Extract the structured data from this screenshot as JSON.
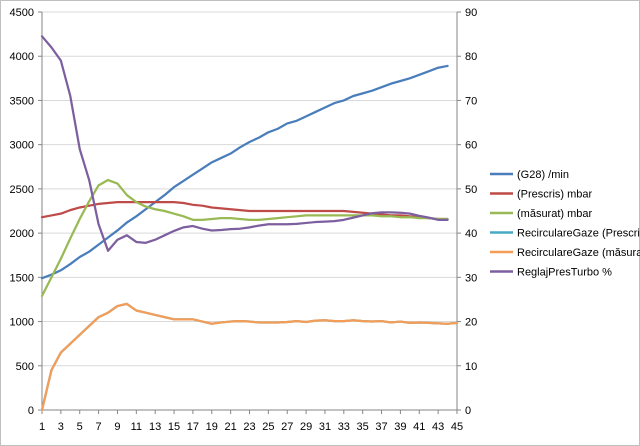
{
  "chart_data": {
    "type": "line",
    "x": [
      1,
      2,
      3,
      4,
      5,
      6,
      7,
      8,
      9,
      10,
      11,
      12,
      13,
      14,
      15,
      16,
      17,
      18,
      19,
      20,
      21,
      22,
      23,
      24,
      25,
      26,
      27,
      28,
      29,
      30,
      31,
      32,
      33,
      34,
      35,
      36,
      37,
      38,
      39,
      40,
      41,
      42,
      43,
      44,
      45
    ],
    "x_ticks": [
      "1",
      "3",
      "5",
      "7",
      "9",
      "11",
      "13",
      "15",
      "17",
      "19",
      "21",
      "23",
      "25",
      "27",
      "29",
      "31",
      "33",
      "35",
      "37",
      "39",
      "41",
      "43",
      "45"
    ],
    "y_left": {
      "min": 0,
      "max": 4500,
      "step": 500,
      "ticks": [
        "0",
        "500",
        "1000",
        "1500",
        "2000",
        "2500",
        "3000",
        "3500",
        "4000",
        "4500"
      ]
    },
    "y_right": {
      "min": 0,
      "max": 90,
      "step": 10,
      "ticks": [
        "0",
        "10",
        "20",
        "30",
        "40",
        "50",
        "60",
        "70",
        "80",
        "90"
      ]
    },
    "grid": "horizontal",
    "legend_position": "right",
    "series": [
      {
        "name": "(G28)  /min",
        "axis": "left",
        "color": "#4a7ebb",
        "values": [
          1490,
          1530,
          1580,
          1650,
          1730,
          1790,
          1870,
          1950,
          2030,
          2120,
          2190,
          2270,
          2350,
          2430,
          2520,
          2590,
          2660,
          2730,
          2800,
          2850,
          2900,
          2970,
          3030,
          3080,
          3140,
          3180,
          3240,
          3270,
          3320,
          3370,
          3420,
          3470,
          3500,
          3550,
          3580,
          3610,
          3650,
          3690,
          3720,
          3750,
          3790,
          3830,
          3870,
          3890,
          null
        ]
      },
      {
        "name": "(Prescris)  mbar",
        "axis": "left",
        "color": "#be4b48",
        "values": [
          2180,
          2200,
          2220,
          2260,
          2290,
          2310,
          2330,
          2340,
          2350,
          2350,
          2350,
          2350,
          2350,
          2350,
          2350,
          2340,
          2320,
          2310,
          2290,
          2280,
          2270,
          2260,
          2250,
          2250,
          2250,
          2250,
          2250,
          2250,
          2250,
          2250,
          2250,
          2250,
          2250,
          2240,
          2230,
          2220,
          2210,
          2200,
          2200,
          2190,
          2180,
          2170,
          2160,
          2160,
          null
        ]
      },
      {
        "name": "(măsurat)  mbar",
        "axis": "left",
        "color": "#98b954",
        "values": [
          1290,
          1500,
          1710,
          1940,
          2160,
          2360,
          2540,
          2600,
          2560,
          2430,
          2350,
          2300,
          2270,
          2250,
          2220,
          2190,
          2150,
          2150,
          2160,
          2170,
          2170,
          2160,
          2150,
          2150,
          2160,
          2170,
          2180,
          2190,
          2200,
          2200,
          2200,
          2200,
          2200,
          2200,
          2200,
          2200,
          2190,
          2190,
          2180,
          2180,
          2170,
          2170,
          2160,
          2160,
          null
        ]
      },
      {
        "name": "RecirculareGaze (Prescris)",
        "axis": "right",
        "color": "#46aac5",
        "values": [
          0,
          9,
          13,
          15,
          17,
          19,
          21,
          22,
          23.5,
          24,
          22.5,
          22,
          21.5,
          21,
          20.5,
          20.5,
          20.5,
          20,
          19.5,
          19.8,
          20,
          20.1,
          20,
          19.8,
          19.8,
          19.8,
          19.9,
          20.1,
          19.9,
          20.2,
          20.3,
          20.1,
          20.1,
          20.3,
          20.1,
          20,
          20.1,
          19.8,
          20,
          19.7,
          19.8,
          19.7,
          19.6,
          19.5,
          19.7
        ]
      },
      {
        "name": "RecirculareGaze (măsurat)",
        "axis": "right",
        "color": "#f59d56",
        "values": [
          0,
          9,
          13,
          15,
          17,
          19,
          21,
          22,
          23.5,
          24,
          22.5,
          22,
          21.5,
          21,
          20.5,
          20.5,
          20.5,
          20,
          19.5,
          19.8,
          20,
          20.1,
          20,
          19.8,
          19.8,
          19.8,
          19.9,
          20.1,
          19.9,
          20.2,
          20.3,
          20.1,
          20.1,
          20.3,
          20.1,
          20,
          20.1,
          19.8,
          20,
          19.7,
          19.8,
          19.7,
          19.6,
          19.5,
          19.7
        ]
      },
      {
        "name": "ReglajPresTurbo  %",
        "axis": "right",
        "color": "#7d5fa0",
        "values": [
          84.5,
          82,
          79,
          71,
          59,
          52,
          42,
          36,
          38.5,
          39.5,
          38,
          37.8,
          38.5,
          39.5,
          40.5,
          41.3,
          41.6,
          41,
          40.6,
          40.7,
          40.9,
          41,
          41.3,
          41.7,
          42,
          42,
          42,
          42.1,
          42.3,
          42.5,
          42.6,
          42.7,
          43,
          43.5,
          44,
          44.5,
          44.7,
          44.7,
          44.6,
          44.4,
          43.9,
          43.5,
          43,
          43,
          null
        ]
      }
    ]
  }
}
